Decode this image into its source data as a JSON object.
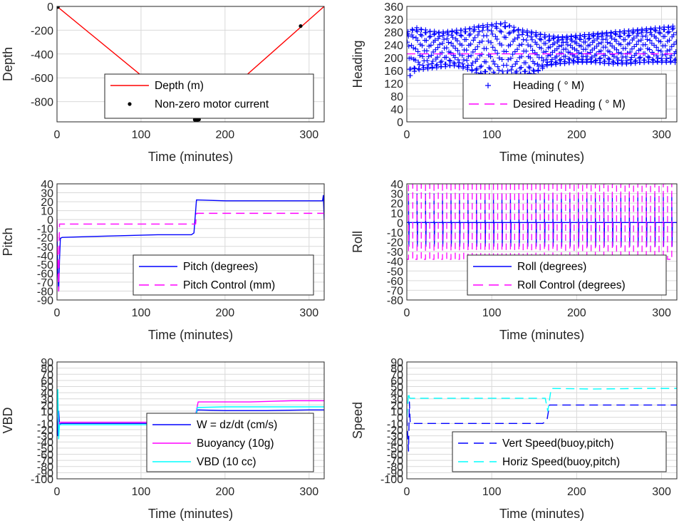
{
  "chart_data": [
    {
      "id": "depth",
      "type": "line",
      "xlabel": "Time (minutes)",
      "ylabel": "Depth",
      "xlim": [
        0,
        318
      ],
      "ylim": [
        -970,
        0
      ],
      "xticks": [
        0,
        100,
        200,
        300
      ],
      "yticks": [
        0,
        -200,
        -400,
        -600,
        -800
      ],
      "grid": true,
      "legend_position": "bottom-center",
      "series": [
        {
          "name": "Depth (m)",
          "kind": "line",
          "color": "#ff0000",
          "x": [
            0,
            165,
            318
          ],
          "y": [
            0,
            -955,
            0
          ]
        },
        {
          "name": "Non-zero motor current",
          "kind": "dots",
          "color": "#000000",
          "x": [
            1,
            164,
            166,
            167,
            169,
            290
          ],
          "y": [
            -5,
            -952,
            -954,
            -955,
            -950,
            -165
          ]
        }
      ]
    },
    {
      "id": "heading",
      "type": "line",
      "xlabel": "Time (minutes)",
      "ylabel": "Heading",
      "xlim": [
        0,
        318
      ],
      "ylim": [
        0,
        360
      ],
      "xticks": [
        0,
        100,
        200,
        300
      ],
      "yticks": [
        0,
        40,
        80,
        120,
        160,
        200,
        240,
        280,
        320,
        360
      ],
      "grid": true,
      "legend_position": "bottom-right",
      "series": [
        {
          "name": "Heading ( ° M)",
          "kind": "plus",
          "color": "#0000ff",
          "x": [
            0,
            10,
            25,
            40,
            55,
            70,
            85,
            100,
            115,
            130,
            150,
            165,
            180,
            200,
            220,
            240,
            260,
            280,
            300,
            318
          ],
          "y_low": [
            130,
            160,
            165,
            170,
            175,
            165,
            150,
            140,
            140,
            145,
            150,
            175,
            180,
            185,
            185,
            180,
            180,
            185,
            185,
            185
          ],
          "y_high": [
            280,
            295,
            285,
            280,
            285,
            290,
            300,
            305,
            310,
            290,
            280,
            270,
            265,
            270,
            275,
            280,
            285,
            290,
            295,
            300
          ]
        },
        {
          "name": "Desired Heading ( ° M)",
          "kind": "dash",
          "color": "#ff00ff",
          "x": [
            0,
            318
          ],
          "y": [
            212,
            212
          ]
        }
      ]
    },
    {
      "id": "pitch",
      "type": "line",
      "xlabel": "Time (minutes)",
      "ylabel": "Pitch",
      "xlim": [
        0,
        318
      ],
      "ylim": [
        -90,
        40
      ],
      "xticks": [
        0,
        100,
        200,
        300
      ],
      "yticks": [
        40,
        30,
        20,
        10,
        0,
        -10,
        -20,
        -30,
        -40,
        -50,
        -60,
        -70,
        -80,
        -90
      ],
      "grid": true,
      "legend_position": "bottom-right",
      "series": [
        {
          "name": "Pitch (degrees)",
          "kind": "line",
          "color": "#0000ff",
          "x": [
            0,
            1,
            2,
            3,
            4,
            6,
            40,
            80,
            120,
            160,
            163,
            166,
            200,
            250,
            300,
            316,
            317,
            318
          ],
          "y": [
            -10,
            -60,
            -80,
            -45,
            -21,
            -20,
            -19,
            -18,
            -17,
            -17,
            -15,
            22,
            21,
            21,
            21,
            21,
            27,
            0
          ]
        },
        {
          "name": "Pitch Control (mm)",
          "kind": "dash",
          "color": "#ff00ff",
          "x": [
            0,
            2,
            3,
            6,
            165,
            166,
            318
          ],
          "y": [
            0,
            -80,
            -5,
            -5,
            -5,
            7,
            7
          ]
        }
      ]
    },
    {
      "id": "roll",
      "type": "line",
      "xlabel": "Time (minutes)",
      "ylabel": "Roll",
      "xlim": [
        0,
        318
      ],
      "ylim": [
        -80,
        40
      ],
      "xticks": [
        0,
        100,
        200,
        300
      ],
      "yticks": [
        40,
        30,
        20,
        10,
        0,
        -10,
        -20,
        -30,
        -40,
        -50,
        -60,
        -70,
        -80
      ],
      "grid": true,
      "legend_position": "bottom-right",
      "series": [
        {
          "name": "Roll (degrees)",
          "kind": "line",
          "color": "#0000ff",
          "baseline": 0,
          "spike_high": 30,
          "spike_low": -25,
          "x_spikes": [
            2,
            12,
            22,
            32,
            42,
            52,
            62,
            72,
            82,
            92,
            102,
            112,
            122,
            132,
            142,
            152,
            162,
            172,
            182,
            192,
            202,
            212,
            222,
            232,
            242,
            252,
            262,
            272,
            282,
            292,
            302,
            312
          ]
        },
        {
          "name": "Roll Control (degrees)",
          "kind": "dash",
          "color": "#ff00ff",
          "high": 40,
          "low": -38,
          "x_switch": [
            2,
            7,
            12,
            17,
            22,
            27,
            32,
            37,
            42,
            47,
            52,
            57,
            62,
            67,
            72,
            77,
            82,
            87,
            92,
            97,
            102,
            107,
            112,
            117,
            122,
            127,
            132,
            137,
            142,
            147,
            152,
            157,
            162,
            167,
            172,
            177,
            182,
            187,
            192,
            197,
            202,
            207,
            212,
            217,
            222,
            227,
            232,
            237,
            242,
            247,
            252,
            257,
            262,
            267,
            272,
            277,
            282,
            287,
            292,
            297,
            302,
            307,
            312
          ]
        }
      ]
    },
    {
      "id": "vbd",
      "type": "line",
      "xlabel": "Time (minutes)",
      "ylabel": "VBD",
      "xlim": [
        0,
        318
      ],
      "ylim": [
        -100,
        90
      ],
      "xticks": [
        0,
        100,
        200,
        300
      ],
      "yticks": [
        90,
        80,
        70,
        60,
        50,
        40,
        30,
        20,
        10,
        0,
        -10,
        -20,
        -30,
        -40,
        -50,
        -60,
        -70,
        -80,
        -90,
        -100
      ],
      "grid": true,
      "legend_position": "bottom-right",
      "series": [
        {
          "name": "W = dz/dt (cm/s)",
          "kind": "line",
          "color": "#0000ff",
          "x": [
            0,
            1,
            2,
            3,
            5,
            50,
            100,
            160,
            163,
            167,
            200,
            250,
            300,
            318
          ],
          "y": [
            0,
            -30,
            10,
            -11,
            -10,
            -10,
            -10,
            -10,
            -8,
            12,
            11,
            11,
            12,
            12
          ]
        },
        {
          "name": "Buoyancy (10g)",
          "kind": "line",
          "color": "#ff00ff",
          "x": [
            0,
            1,
            2,
            3,
            5,
            100,
            163,
            168,
            230,
            280,
            318
          ],
          "y": [
            0,
            40,
            -30,
            -8,
            -8,
            -8,
            -8,
            25,
            25,
            27,
            27
          ]
        },
        {
          "name": "VBD (10 cc)",
          "kind": "line",
          "color": "#00ffff",
          "x": [
            0,
            1,
            2,
            3,
            5,
            100,
            163,
            167,
            200,
            318
          ],
          "y": [
            0,
            45,
            -35,
            -12,
            -12,
            -12,
            -12,
            16,
            17,
            17
          ]
        }
      ]
    },
    {
      "id": "speed",
      "type": "line",
      "xlabel": "Time (minutes)",
      "ylabel": "Speed",
      "xlim": [
        0,
        318
      ],
      "ylim": [
        -100,
        90
      ],
      "xticks": [
        0,
        100,
        200,
        300
      ],
      "yticks": [
        90,
        80,
        70,
        60,
        50,
        40,
        30,
        20,
        10,
        0,
        -10,
        -20,
        -30,
        -40,
        -50,
        -60,
        -70,
        -80,
        -90,
        -100
      ],
      "grid": true,
      "legend_position": "bottom-right",
      "series": [
        {
          "name": "Vert Speed(buoy,pitch)",
          "kind": "dash",
          "color": "#0000ff",
          "x": [
            0,
            2,
            3,
            4,
            6,
            50,
            100,
            160,
            165,
            168,
            200,
            250,
            300,
            318
          ],
          "y": [
            0,
            -55,
            25,
            -10,
            -10,
            -10,
            -10,
            -10,
            -5,
            20,
            20,
            20,
            20,
            20
          ]
        },
        {
          "name": "Horiz Speed(buoy,pitch)",
          "kind": "dash",
          "color": "#00ffff",
          "x": [
            0,
            2,
            3,
            4,
            6,
            50,
            100,
            163,
            166,
            170,
            220,
            280,
            318
          ],
          "y": [
            0,
            40,
            32,
            31,
            31,
            31,
            31,
            31,
            10,
            47,
            46,
            47,
            47
          ]
        }
      ]
    }
  ]
}
